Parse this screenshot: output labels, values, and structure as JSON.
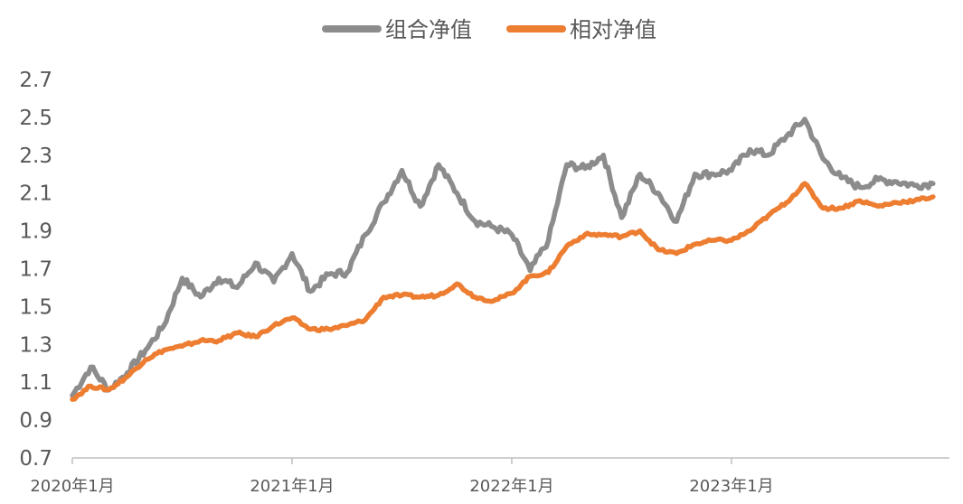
{
  "chart_data": {
    "type": "line",
    "title": "",
    "xlabel": "",
    "ylabel": "",
    "x": [
      "2020-01",
      "2020-02",
      "2020-03",
      "2020-04",
      "2020-05",
      "2020-06",
      "2020-07",
      "2020-08",
      "2020-09",
      "2020-10",
      "2020-11",
      "2020-12",
      "2021-01",
      "2021-02",
      "2021-03",
      "2021-04",
      "2021-05",
      "2021-06",
      "2021-07",
      "2021-08",
      "2021-09",
      "2021-10",
      "2021-11",
      "2021-12",
      "2022-01",
      "2022-02",
      "2022-03",
      "2022-04",
      "2022-05",
      "2022-06",
      "2022-07",
      "2022-08",
      "2022-09",
      "2022-10",
      "2022-11",
      "2022-12",
      "2023-01",
      "2023-02",
      "2023-03",
      "2023-04",
      "2023-05",
      "2023-06",
      "2023-07",
      "2023-08",
      "2023-09",
      "2023-10",
      "2023-11",
      "2023-12"
    ],
    "x_ticks": [
      "2020年1月",
      "2021年1月",
      "2022年1月",
      "2023年1月"
    ],
    "x_tick_index": [
      0,
      12,
      24,
      36
    ],
    "y_ticks": [
      "0.7",
      "0.9",
      "1.1",
      "1.3",
      "1.5",
      "1.7",
      "1.9",
      "2.1",
      "2.3",
      "2.5",
      "2.7"
    ],
    "ylim": [
      0.7,
      2.7
    ],
    "grid": false,
    "legend_position": "top-center",
    "series": [
      {
        "name": "组合净值",
        "color": "#8c8c8c",
        "values": [
          1.03,
          1.18,
          1.06,
          1.15,
          1.27,
          1.4,
          1.65,
          1.55,
          1.65,
          1.6,
          1.73,
          1.63,
          1.78,
          1.58,
          1.67,
          1.68,
          1.88,
          2.05,
          2.22,
          2.03,
          2.25,
          2.1,
          1.95,
          1.92,
          1.88,
          1.69,
          1.85,
          2.25,
          2.23,
          2.3,
          1.97,
          2.2,
          2.1,
          1.95,
          2.2,
          2.2,
          2.22,
          2.33,
          2.3,
          2.4,
          2.49,
          2.28,
          2.18,
          2.13,
          2.17,
          2.16,
          2.14,
          2.15
        ]
      },
      {
        "name": "相对净值",
        "color": "#ed7d31",
        "values": [
          1.01,
          1.08,
          1.06,
          1.13,
          1.22,
          1.27,
          1.29,
          1.32,
          1.32,
          1.36,
          1.34,
          1.4,
          1.44,
          1.38,
          1.38,
          1.4,
          1.43,
          1.55,
          1.56,
          1.55,
          1.56,
          1.62,
          1.55,
          1.53,
          1.57,
          1.66,
          1.68,
          1.82,
          1.88,
          1.88,
          1.87,
          1.9,
          1.8,
          1.78,
          1.83,
          1.85,
          1.85,
          1.9,
          1.98,
          2.05,
          2.15,
          2.02,
          2.02,
          2.06,
          2.03,
          2.05,
          2.06,
          2.08
        ]
      }
    ]
  }
}
